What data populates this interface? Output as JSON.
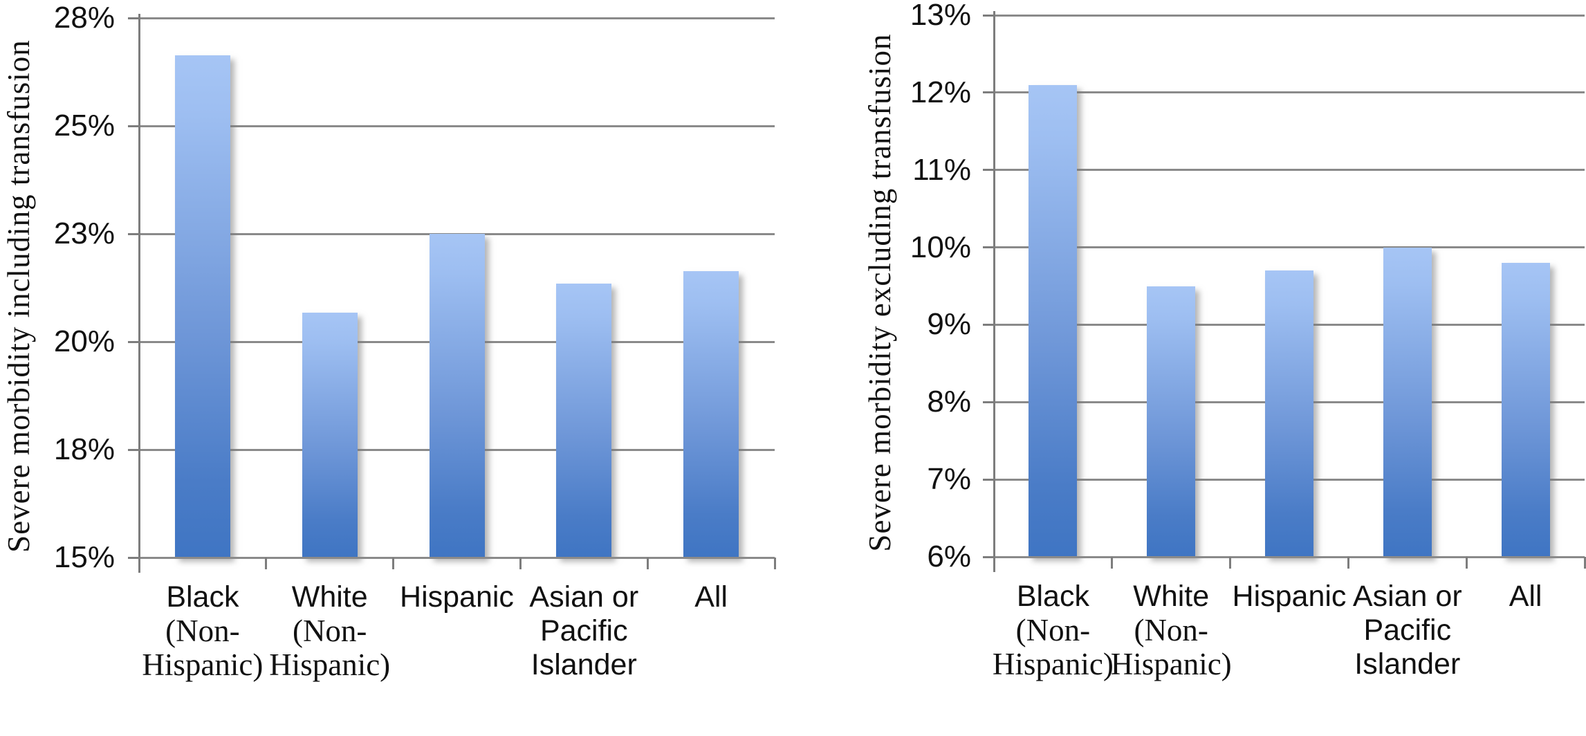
{
  "page": {
    "background": "#ffffff",
    "description": "Two vertical bar charts comparing severe maternal morbidity rates by race/ethnicity"
  },
  "colors": {
    "bar_gradient_top": "#a6c5f5",
    "bar_gradient_bottom": "#3f75c3",
    "gridline": "#8a8a8a",
    "axis": "#7d7d7d",
    "text": "#111111"
  },
  "chart_data": [
    {
      "type": "bar",
      "title": "",
      "xlabel": "",
      "ylabel": "Severe morbidity including transfusion",
      "categories": [
        "Black\n(Non-\nHispanic)",
        "White\n(Non-\nHispanic)",
        "Hispanic",
        "Asian or\nPacific\nIslander",
        "All"
      ],
      "values": [
        27.1,
        20.9,
        22.8,
        21.6,
        21.9
      ],
      "unit": "%",
      "ylim": [
        15,
        28
      ],
      "yticks_top_to_bottom": [
        "28%",
        "25%",
        "23%",
        "20%",
        "18%",
        "15%"
      ],
      "grid": true,
      "legend": "none"
    },
    {
      "type": "bar",
      "title": "",
      "xlabel": "",
      "ylabel": "Severe morbidity excluding transfusion",
      "categories": [
        "Black\n(Non-\nHispanic)",
        "White\n(Non-\nHispanic)",
        "Hispanic",
        "Asian or\nPacific\nIslander",
        "All"
      ],
      "values": [
        12.1,
        9.5,
        9.7,
        10.0,
        9.8
      ],
      "unit": "%",
      "ylim": [
        6,
        13
      ],
      "yticks_top_to_bottom": [
        "13%",
        "12%",
        "11%",
        "10%",
        "9%",
        "8%",
        "7%",
        "6%"
      ],
      "grid": true,
      "legend": "none"
    }
  ]
}
